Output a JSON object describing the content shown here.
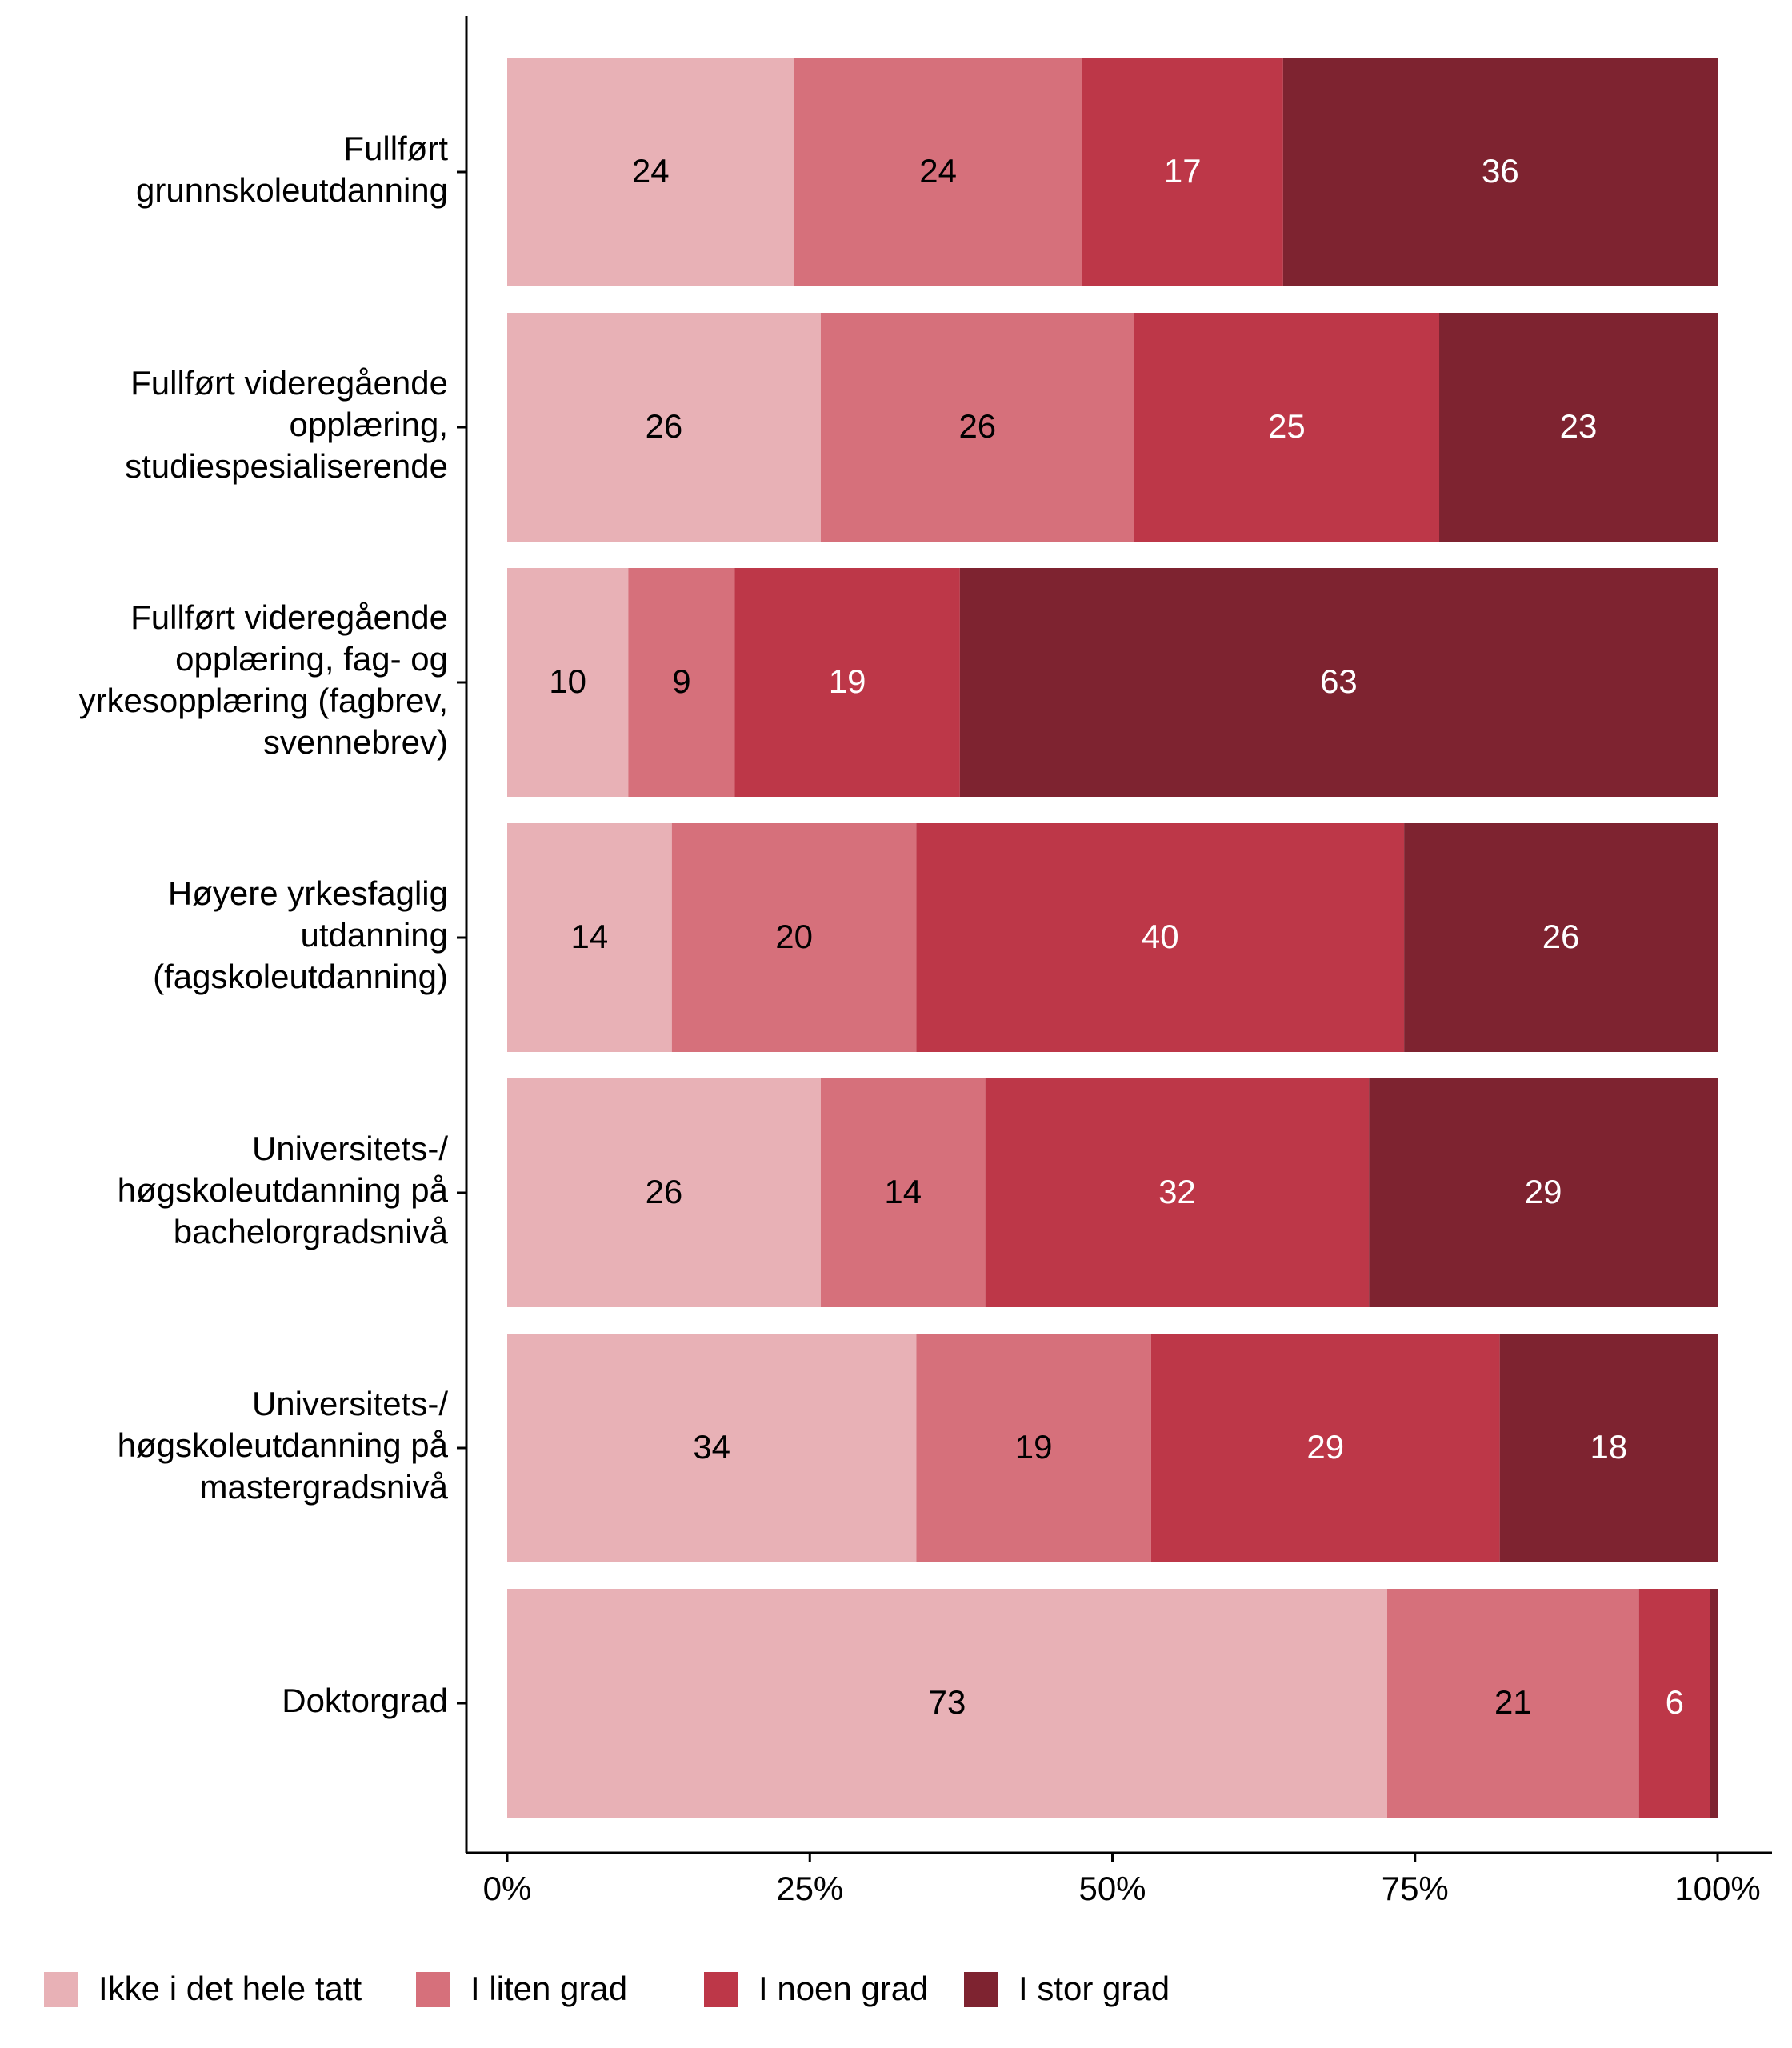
{
  "chart_data": {
    "type": "stacked-bar-horizontal",
    "categories": [
      [
        "Fullført",
        "grunnskoleutdanning"
      ],
      [
        "Fullført videregående",
        "opplæring,",
        "studiespesialiserende"
      ],
      [
        "Fullført videregående",
        "opplæring, fag- og",
        "yrkesopplæring (fagbrev,",
        "svennebrev)"
      ],
      [
        "Høyere yrkesfaglig",
        "utdanning",
        "(fagskoleutdanning)"
      ],
      [
        "Universitets-/",
        "høgskoleutdanning på",
        "bachelorgradsnivå"
      ],
      [
        "Universitets-/",
        "høgskoleutdanning på",
        "mastergradsnivå"
      ],
      [
        "Doktorgrad"
      ]
    ],
    "series": [
      {
        "name": "Ikke i det hele tatt",
        "color": "#e8b1b6",
        "label_color": "#000000",
        "values": [
          23.7,
          25.9,
          10.0,
          13.6,
          25.9,
          33.8,
          72.7
        ],
        "value_labels": [
          "24",
          "26",
          "10",
          "14",
          "26",
          "34",
          "73"
        ]
      },
      {
        "name": "I liten grad",
        "color": "#d6707b",
        "label_color": "#000000",
        "values": [
          23.8,
          25.9,
          8.8,
          20.2,
          13.6,
          19.4,
          20.8
        ],
        "value_labels": [
          "24",
          "26",
          "9",
          "20",
          "14",
          "19",
          "21"
        ]
      },
      {
        "name": "I noen grad",
        "color": "#bd3748",
        "label_color": "#ffffff",
        "values": [
          16.6,
          25.2,
          18.6,
          40.3,
          31.7,
          28.8,
          5.9
        ],
        "value_labels": [
          "17",
          "25",
          "19",
          "40",
          "32",
          "29",
          "6"
        ]
      },
      {
        "name": "I stor grad",
        "color": "#7e2330",
        "label_color": "#ffffff",
        "values": [
          35.9,
          23.0,
          62.6,
          25.9,
          28.8,
          18.0,
          0.6
        ],
        "value_labels": [
          "36",
          "23",
          "63",
          "26",
          "29",
          "18",
          null
        ]
      }
    ],
    "xlim": [
      0,
      100
    ],
    "xticks": [
      {
        "value": 0,
        "label": "0%"
      },
      {
        "value": 25,
        "label": "25%"
      },
      {
        "value": 50,
        "label": "50%"
      },
      {
        "value": 75,
        "label": "75%"
      },
      {
        "value": 100,
        "label": "100%"
      }
    ],
    "legend": "bottom"
  }
}
